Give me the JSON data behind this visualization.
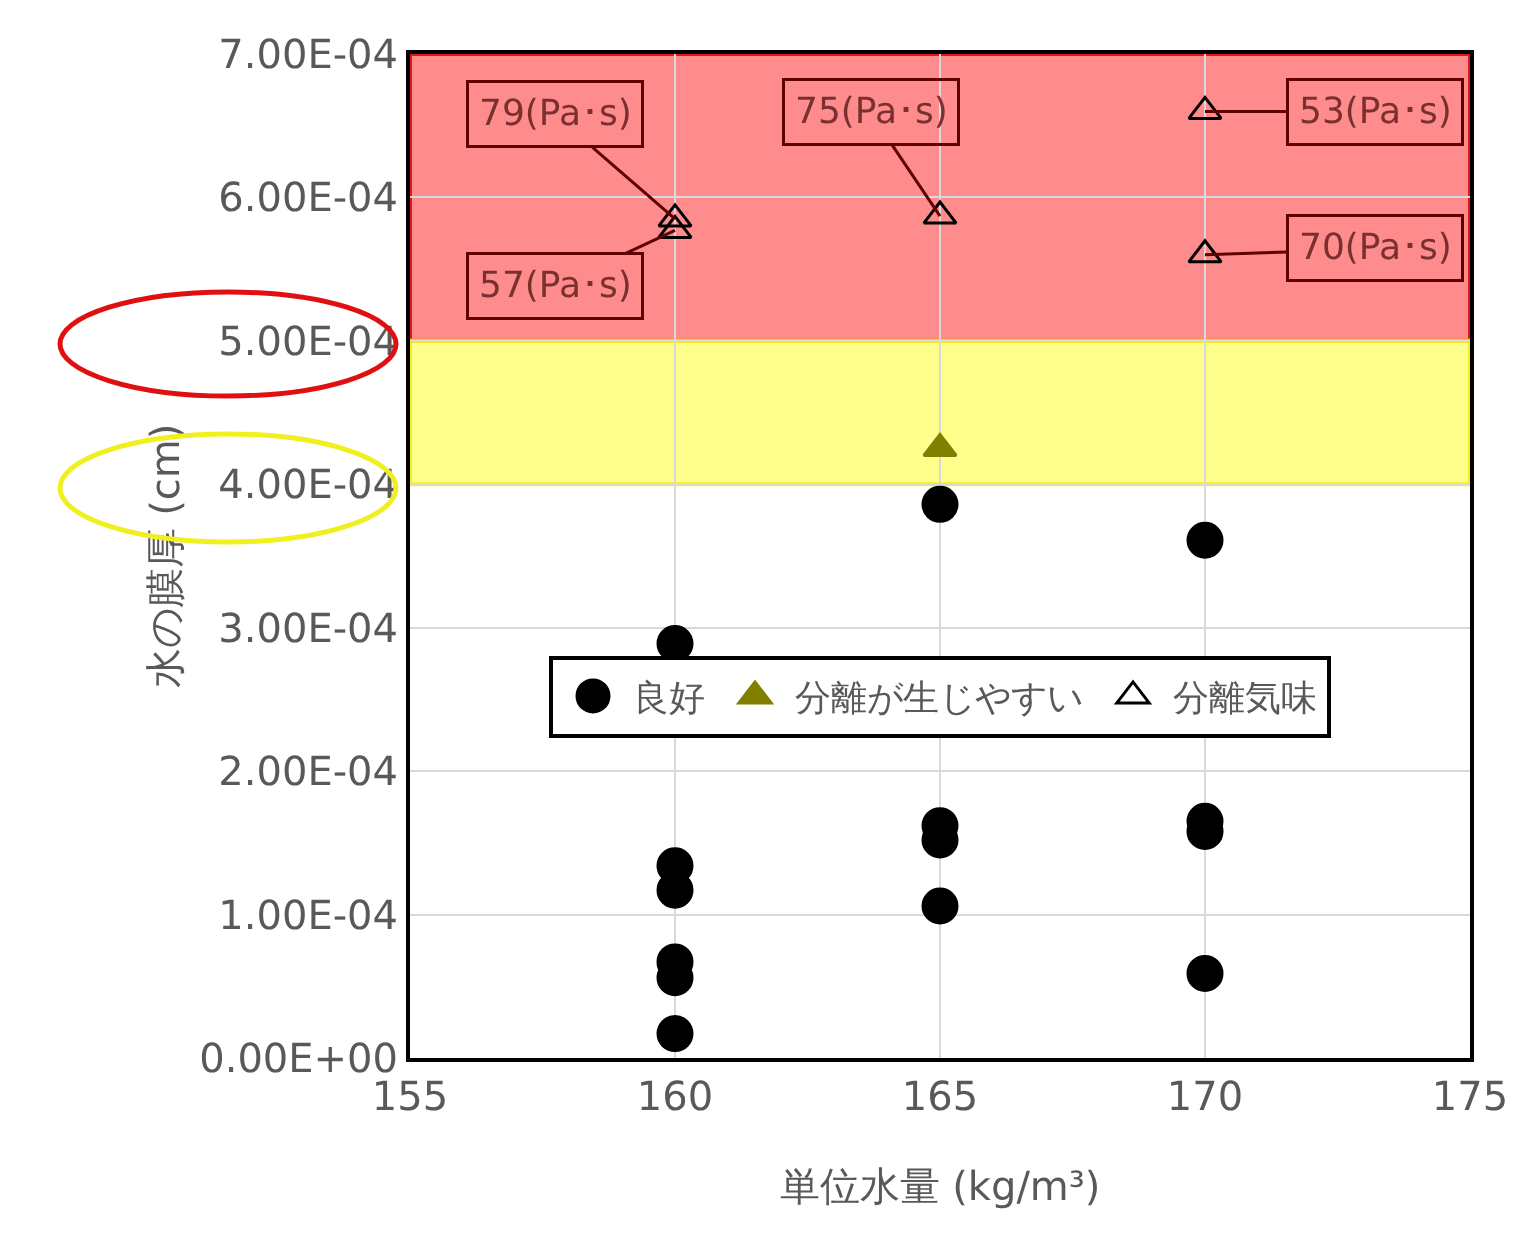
{
  "chart_data": {
    "type": "scatter",
    "xlabel": "単位水量 (kg/m³)",
    "ylabel": "水の膜厚 (cm)",
    "xlim": [
      155,
      175
    ],
    "xticks": [
      155,
      160,
      165,
      170,
      175
    ],
    "ylim": [
      0,
      0.0007
    ],
    "yticks": [
      {
        "value": 0,
        "label": "0.00E+00"
      },
      {
        "value": 0.0001,
        "label": "1.00E-04"
      },
      {
        "value": 0.0002,
        "label": "2.00E-04"
      },
      {
        "value": 0.0003,
        "label": "3.00E-04"
      },
      {
        "value": 0.0004,
        "label": "4.00E-04"
      },
      {
        "value": 0.0005,
        "label": "5.00E-04"
      },
      {
        "value": 0.0006,
        "label": "6.00E-04"
      },
      {
        "value": 0.0007,
        "label": "7.00E-04"
      }
    ],
    "grid": true,
    "legend": "center",
    "series": [
      {
        "name": "良好",
        "color": "#000000",
        "marker": "circle",
        "x": [
          160,
          160,
          160,
          160,
          160,
          160,
          165,
          165,
          165,
          165,
          170,
          170,
          170,
          170
        ],
        "values": [
          0.000289,
          0.000134,
          0.000117,
          6.7e-05,
          5.6e-05,
          1.7e-05,
          0.000386,
          0.000162,
          0.000152,
          0.000106,
          0.000361,
          0.000165,
          0.000158,
          5.9e-05
        ]
      },
      {
        "name": "分離が生じやすい",
        "color": "#7f7f00",
        "marker": "triangle",
        "x": [
          165
        ],
        "values": [
          0.000425
        ]
      },
      {
        "name": "分離気味",
        "color": "#000000",
        "marker": "triangle-open",
        "x": [
          160,
          160,
          165,
          170,
          170
        ],
        "values": [
          0.000585,
          0.000577,
          0.000587,
          0.00066,
          0.00056
        ]
      }
    ],
    "bands": [
      {
        "axis": "y",
        "from": 0.0005,
        "to": 0.0007,
        "color": "#ff8080"
      },
      {
        "axis": "y",
        "from": 0.0004,
        "to": 0.0005,
        "color": "#ffff80"
      }
    ],
    "annotations": [
      {
        "text": "79(Pa･s)",
        "x": 160,
        "y": 0.000585
      },
      {
        "text": "57(Pa･s)",
        "x": 160,
        "y": 0.000577
      },
      {
        "text": "75(Pa･s)",
        "x": 165,
        "y": 0.000587
      },
      {
        "text": "53(Pa･s)",
        "x": 170,
        "y": 0.00066
      },
      {
        "text": "70(Pa･s)",
        "x": 170,
        "y": 0.00056
      }
    ]
  }
}
